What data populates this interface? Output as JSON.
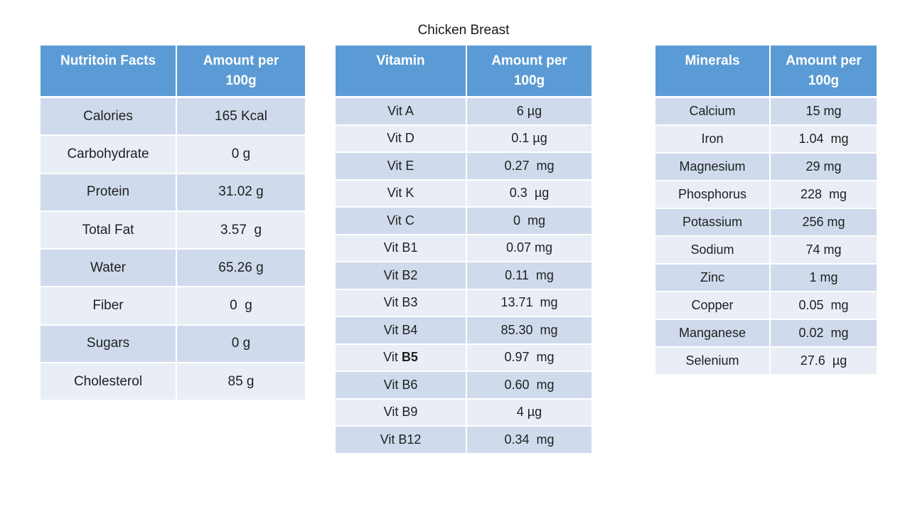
{
  "title": "Chicken Breast",
  "colors": {
    "header_bg": "#5B9BD5",
    "header_text": "#FFFFFF",
    "row_dark": "#CFDBEC",
    "row_light": "#E9EDF6",
    "body_text": "#1F1F1F"
  },
  "tables": {
    "nutrition": {
      "headers": {
        "col1": "Nutritoin Facts",
        "col2": "Amount per\n100g"
      },
      "rows": [
        {
          "name": "Calories",
          "amount": "165 Kcal"
        },
        {
          "name": "Carbohydrate",
          "amount": "0 g"
        },
        {
          "name": "Protein",
          "amount": "31.02 g"
        },
        {
          "name": "Total Fat",
          "amount": "3.57  g"
        },
        {
          "name": "Water",
          "amount": "65.26 g"
        },
        {
          "name": "Fiber",
          "amount": "0  g"
        },
        {
          "name": "Sugars",
          "amount": "0 g"
        },
        {
          "name": "Cholesterol",
          "amount": "85 g"
        }
      ]
    },
    "vitamins": {
      "headers": {
        "col1": "Vitamin",
        "col2": "Amount per\n100g"
      },
      "rows": [
        {
          "name": "Vit A",
          "amount": "6 µg"
        },
        {
          "name": "Vit D",
          "amount": "0.1 µg"
        },
        {
          "name": "Vit E",
          "amount": "0.27  mg"
        },
        {
          "name": "Vit K",
          "amount": "0.3  µg"
        },
        {
          "name": "Vit C",
          "amount": "0  mg"
        },
        {
          "name": "Vit B1",
          "amount": "0.07 mg"
        },
        {
          "name": "Vit B2",
          "amount": "0.11  mg"
        },
        {
          "name": "Vit B3",
          "amount": "13.71  mg"
        },
        {
          "name": "Vit B4",
          "amount": "85.30  mg"
        },
        {
          "name_prefix": "Vit ",
          "name_bold": "B5",
          "amount": "0.97  mg"
        },
        {
          "name": "Vit B6",
          "amount": "0.60  mg"
        },
        {
          "name": "Vit B9",
          "amount": "4 µg"
        },
        {
          "name": "Vit B12",
          "amount": "0.34  mg"
        }
      ]
    },
    "minerals": {
      "headers": {
        "col1": "Minerals",
        "col2": "Amount per\n100g"
      },
      "rows": [
        {
          "name": "Calcium",
          "amount": "15 mg"
        },
        {
          "name": "Iron",
          "amount": "1.04  mg"
        },
        {
          "name": "Magnesium",
          "amount": "29 mg"
        },
        {
          "name": "Phosphorus",
          "amount": "228  mg"
        },
        {
          "name": "Potassium",
          "amount": "256 mg"
        },
        {
          "name": "Sodium",
          "amount": "74 mg"
        },
        {
          "name": "Zinc",
          "amount": "1 mg"
        },
        {
          "name": "Copper",
          "amount": "0.05  mg"
        },
        {
          "name": "Manganese",
          "amount": "0.02  mg"
        },
        {
          "name": "Selenium",
          "amount": "27.6  µg"
        }
      ]
    }
  }
}
